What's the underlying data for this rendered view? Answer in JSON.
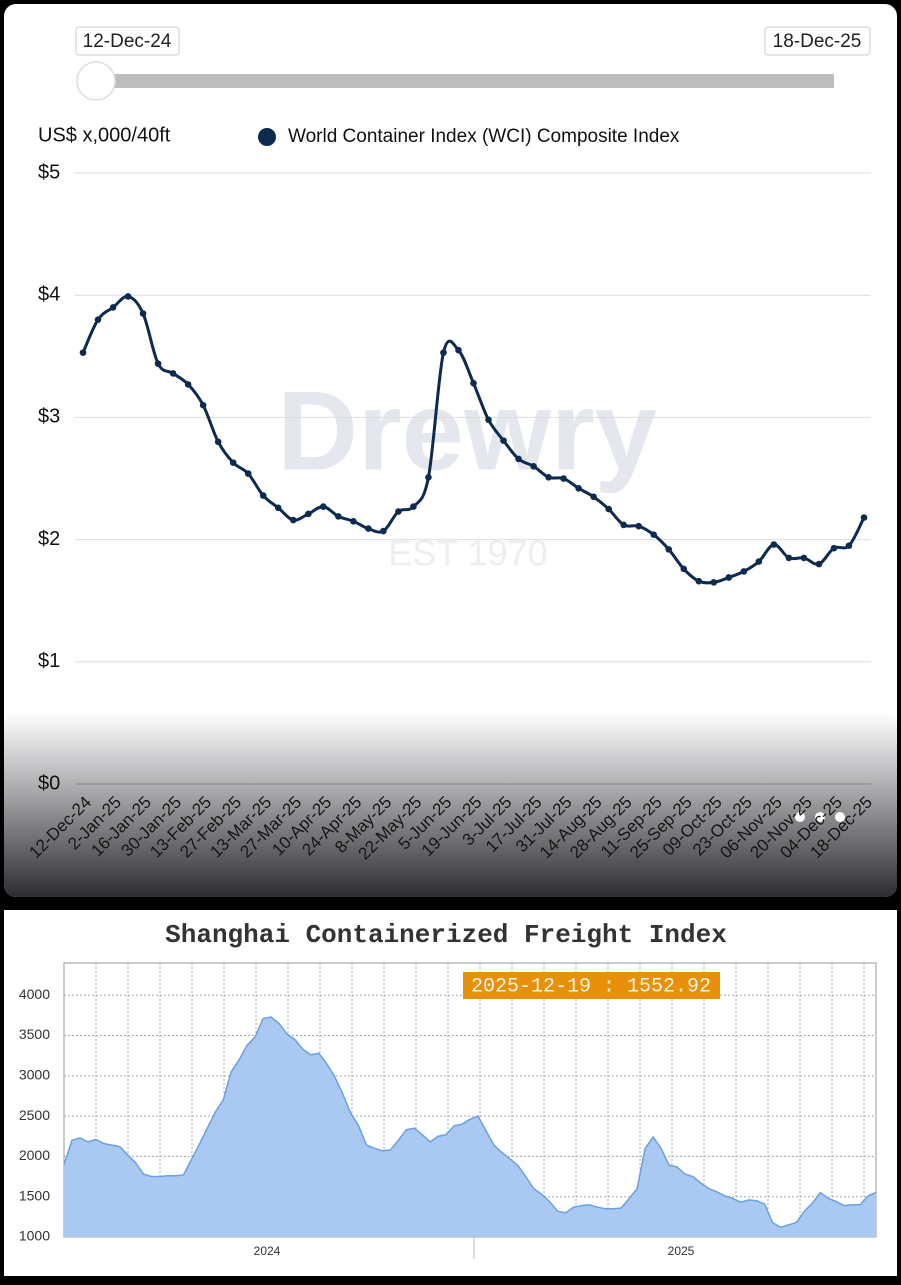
{
  "chart_data": [
    {
      "type": "line",
      "range_start": "12-Dec-24",
      "range_end": "18-Dec-25",
      "y_label": "US$ x,000/40ft",
      "watermark": [
        "Drewry",
        "EST 1970"
      ],
      "categories": [
        "12-Dec-24",
        null,
        "2-Jan-25",
        null,
        "16-Jan-25",
        null,
        "30-Jan-25",
        null,
        "13-Feb-25",
        null,
        "27-Feb-25",
        null,
        "13-Mar-25",
        null,
        "27-Mar-25",
        null,
        "10-Apr-25",
        null,
        "24-Apr-25",
        null,
        "8-May-25",
        null,
        "22-May-25",
        null,
        "5-Jun-25",
        null,
        "19-Jun-25",
        null,
        "3-Jul-25",
        null,
        "17-Jul-25",
        null,
        "31-Jul-25",
        null,
        "14-Aug-25",
        null,
        "28-Aug-25",
        null,
        "11-Sep-25",
        null,
        "25-Sep-25",
        null,
        "09-Oct-25",
        null,
        "23-Oct-25",
        null,
        "06-Nov-25",
        null,
        "20-Nov-25",
        null,
        "04-Dec-25",
        null,
        "18-Dec-25"
      ],
      "series": [
        {
          "name": "World Container Index (WCI) Composite Index",
          "color": "#0d2a4f",
          "values": [
            3.53,
            3.8,
            3.9,
            3.99,
            3.85,
            3.44,
            3.36,
            3.27,
            3.1,
            2.8,
            2.63,
            2.54,
            2.36,
            2.26,
            2.16,
            2.21,
            2.27,
            2.19,
            2.15,
            2.09,
            2.07,
            2.23,
            2.27,
            2.51,
            3.53,
            3.55,
            3.28,
            2.98,
            2.81,
            2.66,
            2.6,
            2.51,
            2.5,
            2.42,
            2.35,
            2.25,
            2.12,
            2.11,
            2.04,
            1.92,
            1.76,
            1.66,
            1.65,
            1.69,
            1.74,
            1.82,
            1.96,
            1.85,
            1.85,
            1.8,
            1.93,
            1.95,
            2.18
          ]
        }
      ],
      "ylim": [
        0,
        5
      ],
      "yticks": [
        {
          "value": 0,
          "label": "$0"
        },
        {
          "value": 1,
          "label": "$1"
        },
        {
          "value": 2,
          "label": "$2"
        },
        {
          "value": 3,
          "label": "$3"
        },
        {
          "value": 4,
          "label": "$4"
        },
        {
          "value": 5,
          "label": "$5"
        }
      ],
      "grid": true
    },
    {
      "type": "area",
      "title": "Shanghai Containerized Freight Index",
      "annotation": "2025-12-19 : 1552.92",
      "x_labels": [
        "2024",
        "2025"
      ],
      "series": [
        {
          "name": null,
          "color": "#a9c9f3",
          "values": [
            1896,
            2200,
            2230,
            2180,
            2210,
            2160,
            2140,
            2120,
            2020,
            1920,
            1780,
            1750,
            1750,
            1760,
            1760,
            1770,
            1960,
            2150,
            2350,
            2550,
            2700,
            3050,
            3200,
            3380,
            3480,
            3710,
            3730,
            3650,
            3520,
            3450,
            3330,
            3260,
            3280,
            3150,
            2990,
            2780,
            2540,
            2380,
            2140,
            2100,
            2070,
            2080,
            2200,
            2330,
            2350,
            2270,
            2180,
            2250,
            2270,
            2380,
            2400,
            2460,
            2500,
            2320,
            2140,
            2050,
            1970,
            1890,
            1750,
            1600,
            1530,
            1440,
            1320,
            1300,
            1370,
            1390,
            1400,
            1370,
            1350,
            1350,
            1360,
            1480,
            1600,
            2100,
            2240,
            2100,
            1890,
            1870,
            1780,
            1750,
            1670,
            1600,
            1560,
            1510,
            1480,
            1430,
            1460,
            1450,
            1410,
            1180,
            1120,
            1150,
            1180,
            1320,
            1420,
            1550,
            1480,
            1440,
            1390,
            1400,
            1400,
            1510,
            1552.92
          ]
        }
      ],
      "ylim": [
        1000,
        4400
      ],
      "yticks": [
        1000,
        1500,
        2000,
        2500,
        3000,
        3500,
        4000
      ],
      "grid": true
    }
  ]
}
